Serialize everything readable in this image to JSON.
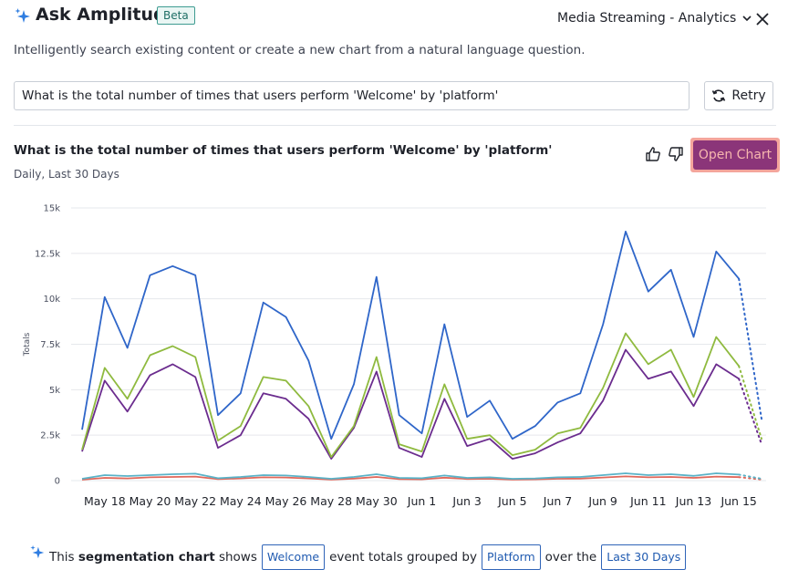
{
  "header": {
    "title": "Ask Amplitude",
    "badge": "Beta",
    "project": "Media Streaming - Analytics",
    "subtitle": "Intelligently search existing content or create a new chart from a natural language question."
  },
  "search": {
    "value": "What is the total number of times that users perform 'Welcome' by 'platform'",
    "retry_label": "Retry"
  },
  "result": {
    "title": "What is the total number of times that users perform 'Welcome' by 'platform'",
    "subtitle": "Daily, Last 30 Days",
    "open_chart_label": "Open Chart"
  },
  "chart_data": {
    "type": "line",
    "ylabel": "Totals",
    "xlabel": "",
    "ylim": [
      0,
      15000
    ],
    "yticks": [
      "0",
      "2.5k",
      "5k",
      "7.5k",
      "10k",
      "12.5k",
      "15k"
    ],
    "x": [
      "May 17",
      "May 18",
      "May 19",
      "May 20",
      "May 21",
      "May 22",
      "May 23",
      "May 24",
      "May 25",
      "May 26",
      "May 27",
      "May 28",
      "May 29",
      "May 30",
      "May 31",
      "Jun 1",
      "Jun 2",
      "Jun 3",
      "Jun 4",
      "Jun 5",
      "Jun 6",
      "Jun 7",
      "Jun 8",
      "Jun 9",
      "Jun 10",
      "Jun 11",
      "Jun 12",
      "Jun 13",
      "Jun 14",
      "Jun 15",
      "Jun 16"
    ],
    "xtick_labels": [
      "May 18",
      "May 20",
      "May 22",
      "May 24",
      "May 26",
      "May 28",
      "May 30",
      "Jun 1",
      "Jun 3",
      "Jun 5",
      "Jun 7",
      "Jun 9",
      "Jun 11",
      "Jun 13",
      "Jun 15"
    ],
    "partial_last_point": true,
    "grid": "horizontal",
    "series": [
      {
        "color": "#2f66c9",
        "values": [
          2800,
          10100,
          7300,
          11300,
          11800,
          11300,
          3600,
          4800,
          9800,
          9000,
          6600,
          2300,
          5300,
          11200,
          3600,
          2600,
          8600,
          3500,
          4400,
          2300,
          3000,
          4300,
          4800,
          8600,
          13700,
          10400,
          11600,
          7900,
          12600,
          11100,
          3400
        ]
      },
      {
        "color": "#8fba3f",
        "values": [
          1700,
          6200,
          4500,
          6900,
          7400,
          6800,
          2200,
          3000,
          5700,
          5500,
          4100,
          1300,
          3000,
          6800,
          2000,
          1600,
          5300,
          2300,
          2500,
          1400,
          1700,
          2600,
          2900,
          5100,
          8100,
          6400,
          7200,
          4600,
          7900,
          6300,
          2300
        ]
      },
      {
        "color": "#6b2c8e",
        "values": [
          1600,
          5500,
          3800,
          5800,
          6400,
          5700,
          1800,
          2500,
          4800,
          4500,
          3400,
          1200,
          2900,
          6000,
          1800,
          1300,
          4500,
          1900,
          2300,
          1200,
          1500,
          2100,
          2600,
          4400,
          7200,
          5600,
          6000,
          4100,
          6400,
          5600,
          2000
        ]
      },
      {
        "color": "#5ab3c8",
        "values": [
          100,
          300,
          250,
          300,
          350,
          380,
          130,
          200,
          300,
          280,
          200,
          100,
          200,
          350,
          150,
          130,
          280,
          150,
          180,
          100,
          120,
          180,
          200,
          300,
          400,
          300,
          350,
          260,
          400,
          330,
          100
        ]
      },
      {
        "color": "#e0675a",
        "values": [
          50,
          150,
          120,
          180,
          200,
          220,
          80,
          120,
          180,
          170,
          120,
          60,
          110,
          200,
          80,
          70,
          160,
          90,
          100,
          60,
          70,
          100,
          110,
          170,
          230,
          180,
          200,
          150,
          220,
          190,
          60
        ]
      }
    ]
  },
  "footer": {
    "prefix": "This",
    "chart_kind": "segmentation chart",
    "shows": "shows",
    "event_chip": "Welcome",
    "grouped_text": "event totals grouped by",
    "group_chip": "Platform",
    "over_text": "over the",
    "range_chip": "Last 30 Days"
  },
  "icons": {
    "sparkle": "sparkle-icon",
    "close": "close-icon",
    "retry": "refresh-icon",
    "thumbs_up": "thumbs-up-icon",
    "thumbs_down": "thumbs-down-icon",
    "chevron": "chevron-down-icon"
  },
  "colors": {
    "accent": "#8b3579",
    "chip_border": "#2f64b8",
    "beta_border": "#3e9c91"
  }
}
